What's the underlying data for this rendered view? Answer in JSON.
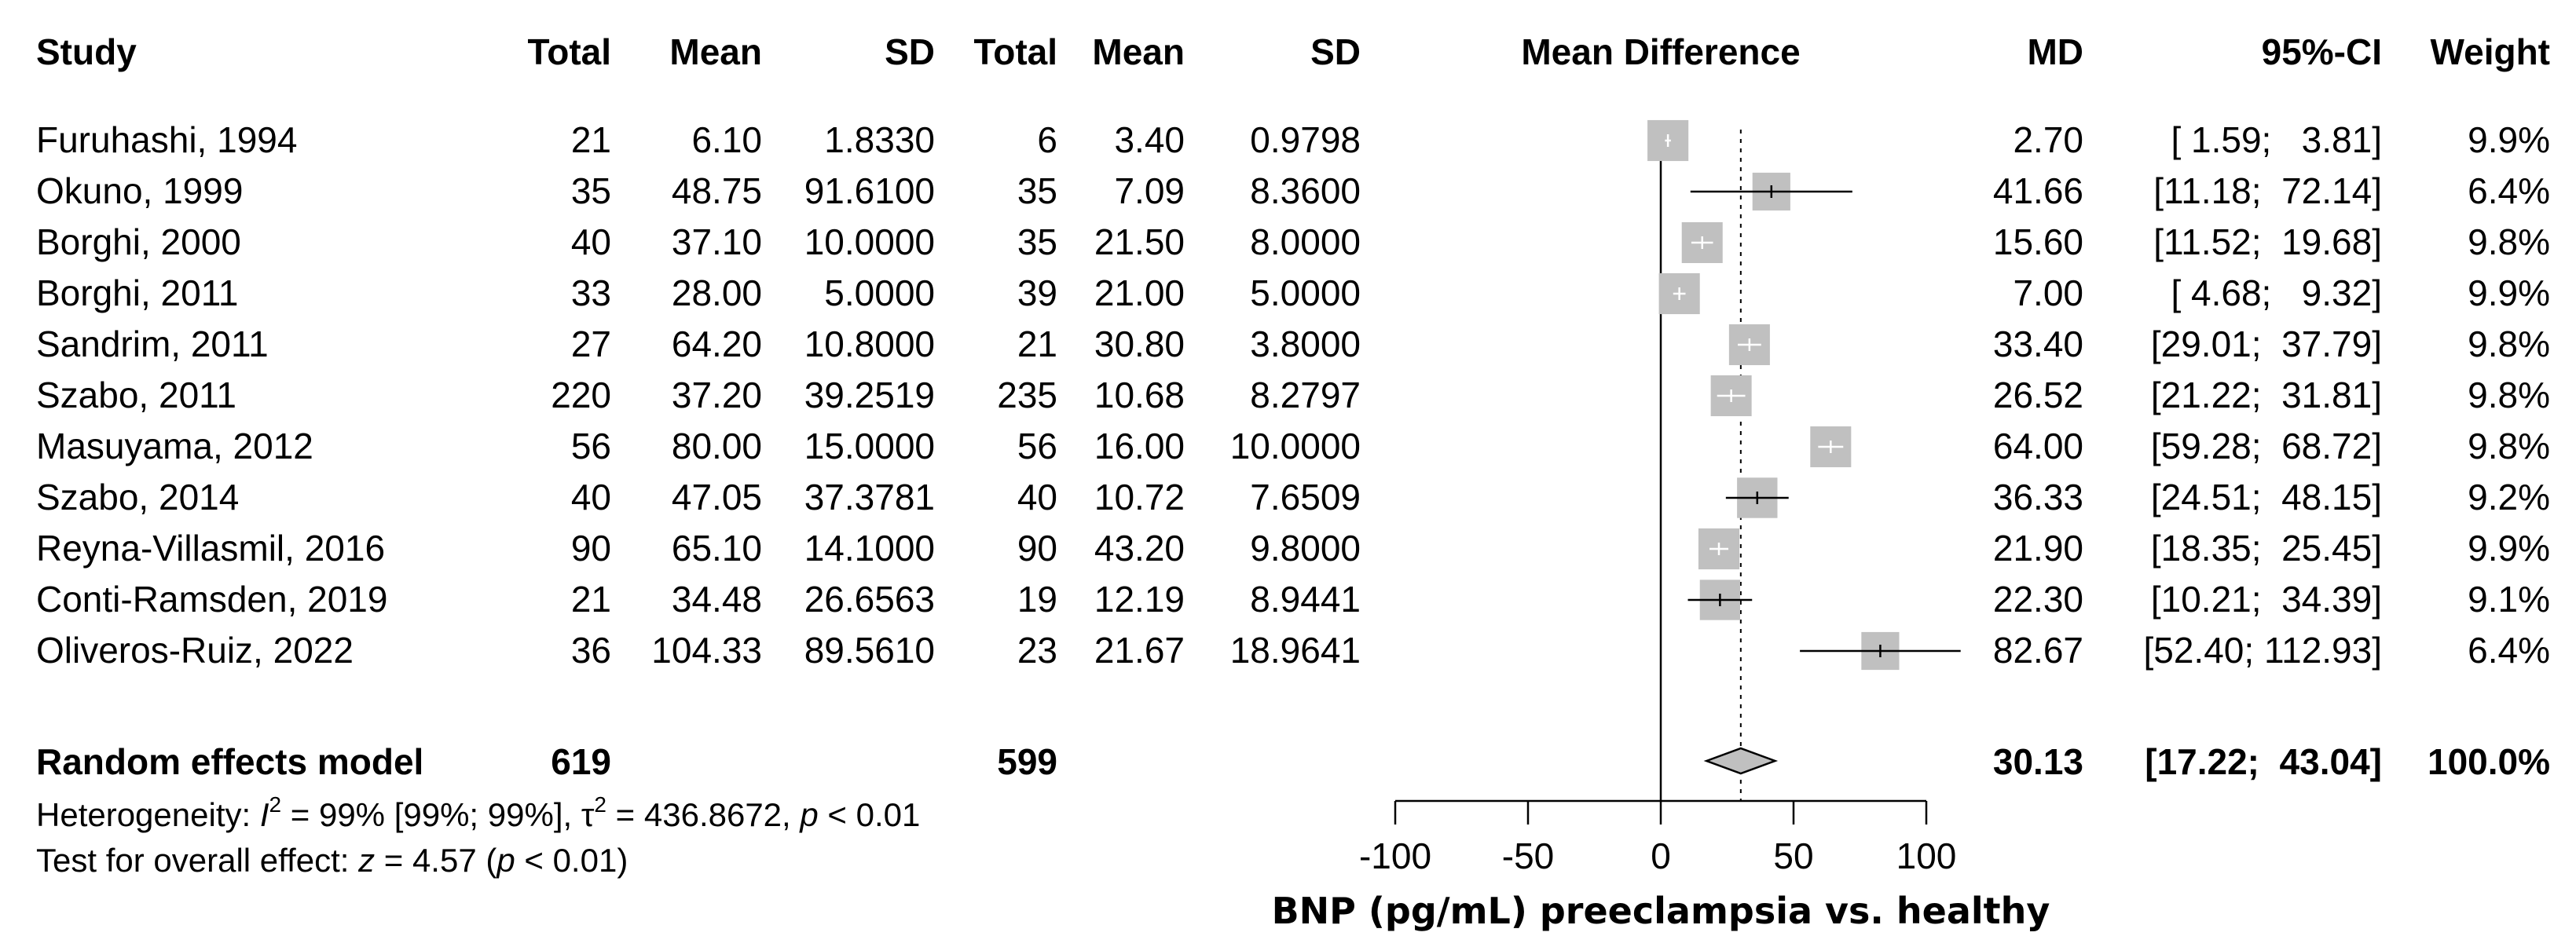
{
  "headers": {
    "study": "Study",
    "exp_total": "Total",
    "exp_mean": "Mean",
    "exp_sd": "SD",
    "ctl_total": "Total",
    "ctl_mean": "Mean",
    "ctl_sd": "SD",
    "plot_title": "Mean Difference",
    "md": "MD",
    "ci": "95%-CI",
    "weight": "Weight"
  },
  "chart_data": {
    "type": "forest",
    "title": "Mean Difference",
    "xlabel": "BNP (pg/mL) preeclampsia vs. healthy",
    "xlim": [
      -100,
      100
    ],
    "xticks": [
      -100,
      -50,
      0,
      50,
      100
    ],
    "xtick_labels": [
      "-100",
      "-50",
      "0",
      "50",
      "100"
    ],
    "null_value": 0,
    "pooled_reference": 30.13,
    "studies": [
      {
        "name": "Furuhashi, 1994",
        "exp_total": "21",
        "exp_mean": "6.10",
        "exp_sd": "1.8330",
        "ctl_total": "6",
        "ctl_mean": "3.40",
        "ctl_sd": "0.9798",
        "md": 2.7,
        "lower": 1.59,
        "upper": 3.81,
        "md_text": "2.70",
        "ci_text": "[ 1.59;   3.81]",
        "weight_text": "9.9%",
        "weight": 9.9
      },
      {
        "name": "Okuno, 1999",
        "exp_total": "35",
        "exp_mean": "48.75",
        "exp_sd": "91.6100",
        "ctl_total": "35",
        "ctl_mean": "7.09",
        "ctl_sd": "8.3600",
        "md": 41.66,
        "lower": 11.18,
        "upper": 72.14,
        "md_text": "41.66",
        "ci_text": "[11.18;  72.14]",
        "weight_text": "6.4%",
        "weight": 6.4
      },
      {
        "name": "Borghi, 2000",
        "exp_total": "40",
        "exp_mean": "37.10",
        "exp_sd": "10.0000",
        "ctl_total": "35",
        "ctl_mean": "21.50",
        "ctl_sd": "8.0000",
        "md": 15.6,
        "lower": 11.52,
        "upper": 19.68,
        "md_text": "15.60",
        "ci_text": "[11.52;  19.68]",
        "weight_text": "9.8%",
        "weight": 9.8
      },
      {
        "name": "Borghi, 2011",
        "exp_total": "33",
        "exp_mean": "28.00",
        "exp_sd": "5.0000",
        "ctl_total": "39",
        "ctl_mean": "21.00",
        "ctl_sd": "5.0000",
        "md": 7.0,
        "lower": 4.68,
        "upper": 9.32,
        "md_text": "7.00",
        "ci_text": "[ 4.68;   9.32]",
        "weight_text": "9.9%",
        "weight": 9.9
      },
      {
        "name": "Sandrim, 2011",
        "exp_total": "27",
        "exp_mean": "64.20",
        "exp_sd": "10.8000",
        "ctl_total": "21",
        "ctl_mean": "30.80",
        "ctl_sd": "3.8000",
        "md": 33.4,
        "lower": 29.01,
        "upper": 37.79,
        "md_text": "33.40",
        "ci_text": "[29.01;  37.79]",
        "weight_text": "9.8%",
        "weight": 9.8
      },
      {
        "name": "Szabo, 2011",
        "exp_total": "220",
        "exp_mean": "37.20",
        "exp_sd": "39.2519",
        "ctl_total": "235",
        "ctl_mean": "10.68",
        "ctl_sd": "8.2797",
        "md": 26.52,
        "lower": 21.22,
        "upper": 31.81,
        "md_text": "26.52",
        "ci_text": "[21.22;  31.81]",
        "weight_text": "9.8%",
        "weight": 9.8
      },
      {
        "name": "Masuyama, 2012",
        "exp_total": "56",
        "exp_mean": "80.00",
        "exp_sd": "15.0000",
        "ctl_total": "56",
        "ctl_mean": "16.00",
        "ctl_sd": "10.0000",
        "md": 64.0,
        "lower": 59.28,
        "upper": 68.72,
        "md_text": "64.00",
        "ci_text": "[59.28;  68.72]",
        "weight_text": "9.8%",
        "weight": 9.8
      },
      {
        "name": "Szabo, 2014",
        "exp_total": "40",
        "exp_mean": "47.05",
        "exp_sd": "37.3781",
        "ctl_total": "40",
        "ctl_mean": "10.72",
        "ctl_sd": "7.6509",
        "md": 36.33,
        "lower": 24.51,
        "upper": 48.15,
        "md_text": "36.33",
        "ci_text": "[24.51;  48.15]",
        "weight_text": "9.2%",
        "weight": 9.2
      },
      {
        "name": "Reyna-Villasmil, 2016",
        "exp_total": "90",
        "exp_mean": "65.10",
        "exp_sd": "14.1000",
        "ctl_total": "90",
        "ctl_mean": "43.20",
        "ctl_sd": "9.8000",
        "md": 21.9,
        "lower": 18.35,
        "upper": 25.45,
        "md_text": "21.90",
        "ci_text": "[18.35;  25.45]",
        "weight_text": "9.9%",
        "weight": 9.9
      },
      {
        "name": "Conti-Ramsden, 2019",
        "exp_total": "21",
        "exp_mean": "34.48",
        "exp_sd": "26.6563",
        "ctl_total": "19",
        "ctl_mean": "12.19",
        "ctl_sd": "8.9441",
        "md": 22.3,
        "lower": 10.21,
        "upper": 34.39,
        "md_text": "22.30",
        "ci_text": "[10.21;  34.39]",
        "weight_text": "9.1%",
        "weight": 9.1
      },
      {
        "name": "Oliveros-Ruiz, 2022",
        "exp_total": "36",
        "exp_mean": "104.33",
        "exp_sd": "89.5610",
        "ctl_total": "23",
        "ctl_mean": "21.67",
        "ctl_sd": "18.9641",
        "md": 82.67,
        "lower": 52.4,
        "upper": 112.93,
        "md_text": "82.67",
        "ci_text": "[52.40; 112.93]",
        "weight_text": "6.4%",
        "weight": 6.4
      }
    ],
    "summary": {
      "name": "Random effects model",
      "exp_total": "619",
      "ctl_total": "599",
      "md": 30.13,
      "lower": 17.22,
      "upper": 43.04,
      "md_text": "30.13",
      "ci_text": "[17.22;  43.04]",
      "weight_text": "100.0%"
    },
    "heterogeneity": {
      "prefix": "Heterogeneity: ",
      "i2_symbol": "I",
      "i2_sup": "2",
      "i2_value": " = 99% [99%; 99%], ",
      "tau2_symbol": "τ",
      "tau2_sup": "2",
      "tau2_value": " = 436.8672, ",
      "p_symbol": "p",
      "p_value": " < 0.01"
    },
    "overall_effect": {
      "prefix": "Test for overall effect: ",
      "z_symbol": "z",
      "z_value": " = 4.57 (",
      "p_symbol": "p",
      "p_value": " < 0.01)"
    },
    "colors": {
      "box": "#c0c0c0",
      "line": "#000000",
      "ref_line": "#000000",
      "text": "#000000"
    }
  }
}
